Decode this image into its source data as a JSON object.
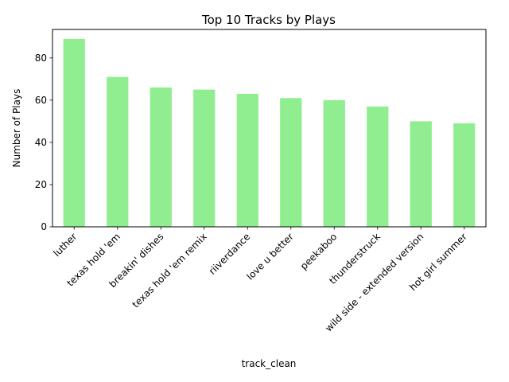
{
  "chart_data": {
    "type": "bar",
    "title": "Top 10 Tracks by Plays",
    "xlabel": "track_clean",
    "ylabel": "Number of Plays",
    "categories": [
      "luther",
      "texas hold 'em",
      "breakin' dishes",
      "texas hold 'em  remix",
      "riiverdance",
      "love u better",
      "peekaboo",
      "thunderstruck",
      "wild side  - extended version",
      "hot girl summer"
    ],
    "values": [
      89,
      71,
      66,
      65,
      63,
      61,
      60,
      57,
      50,
      49
    ],
    "ylim": [
      0,
      93.5
    ],
    "yticks": [
      0,
      20,
      40,
      60,
      80
    ],
    "bar_color": "#90ee90",
    "grid": false,
    "legend": false
  }
}
